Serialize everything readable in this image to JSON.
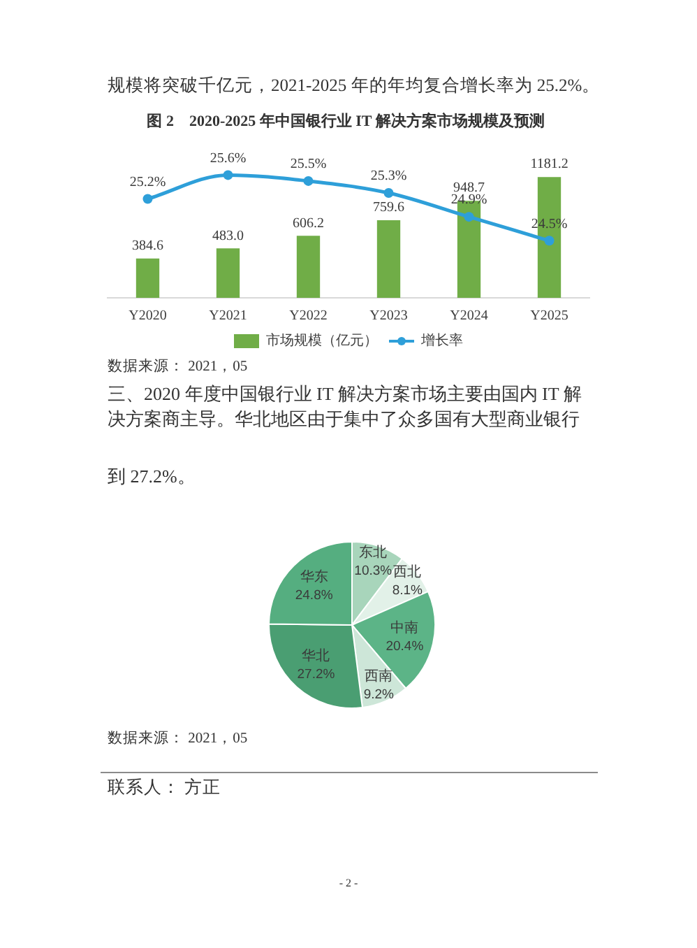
{
  "chart_data": [
    {
      "type": "bar",
      "title": "图 2　2020-2025 年中国银行业 IT 解决方案市场规模及预测",
      "categories": [
        "Y2020",
        "Y2021",
        "Y2022",
        "Y2023",
        "Y2024",
        "Y2025"
      ],
      "series": [
        {
          "name": "市场规模（亿元）",
          "type": "bar",
          "color": "#70ad47",
          "values": [
            384.6,
            483.0,
            606.2,
            759.6,
            948.7,
            1181.2
          ],
          "value_labels": [
            "384.6",
            "483.0",
            "606.2",
            "759.6",
            "948.7",
            "1181.2"
          ]
        },
        {
          "name": "增长率",
          "type": "line",
          "axis": "y2",
          "color": "#2e9fd9",
          "marker": "circle",
          "values": [
            25.2,
            25.6,
            25.5,
            25.3,
            24.9,
            24.5
          ],
          "value_labels": [
            "25.2%",
            "25.6%",
            "25.5%",
            "25.3%",
            "24.9%",
            "24.5%"
          ]
        }
      ],
      "tick_labels": "x",
      "legend": "bottom",
      "annotations": [
        "规模将突破千亿元，2021-2025 年的年均复合增长率为 25.2%。",
        "数据来源： 2021，05"
      ]
    },
    {
      "type": "pie",
      "categories": [
        "东北",
        "西北",
        "中南",
        "西南",
        "华北",
        "华东"
      ],
      "values": [
        10.3,
        8.1,
        20.4,
        9.2,
        27.2,
        24.8
      ],
      "colors": [
        "#a8d5bb",
        "#e2f1e8",
        "#5cb487",
        "#cde6d8",
        "#4a9e72",
        "#55ae80"
      ],
      "value_labels": [
        "10.3%",
        "8.1%",
        "20.4%",
        "9.2%",
        "27.2%",
        "24.8%"
      ],
      "annotations": [
        "三、2020 年度中国银行业 IT 解决方案市场主要由国内 IT 解决方案商主导。华北地区由于集中了众多国有大型商业银行",
        "到 27.2%。",
        "数据来源： 2021，05",
        "联系人： 方正",
        "- 2 -"
      ]
    }
  ]
}
